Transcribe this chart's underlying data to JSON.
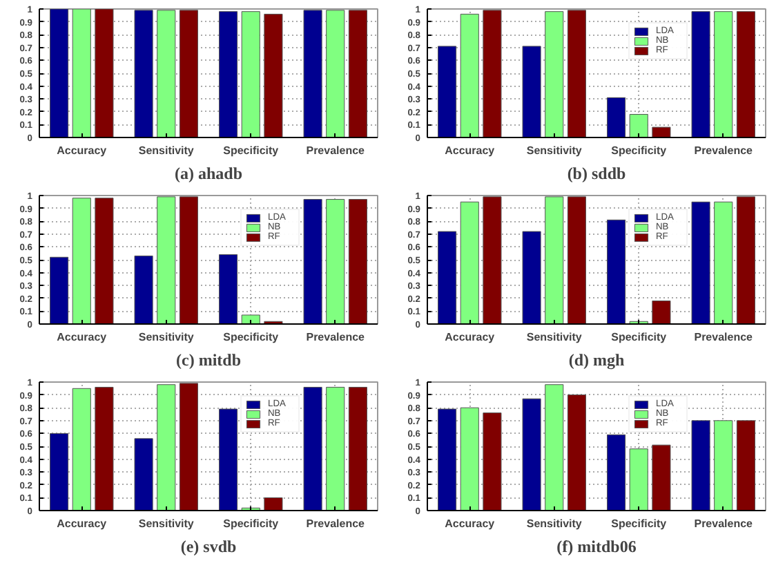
{
  "chart_data": [
    {
      "type": "bar",
      "xlabel": "(a) ahadb",
      "categories": [
        "Accuracy",
        "Sensitivity",
        "Specificity",
        "Prevalence"
      ],
      "ylim": [
        0,
        1
      ],
      "yticks": [
        0,
        0.1,
        0.2,
        0.3,
        0.4,
        0.5,
        0.6,
        0.7,
        0.8,
        0.9,
        1
      ],
      "grid": true,
      "legend": false,
      "series": [
        {
          "color": "#000090",
          "values": [
            1,
            0.99,
            0.98,
            0.99
          ]
        },
        {
          "color": "#80ff80",
          "values": [
            1,
            0.99,
            0.98,
            0.99
          ]
        },
        {
          "color": "#800000",
          "values": [
            1,
            0.99,
            0.96,
            0.99
          ]
        }
      ]
    },
    {
      "type": "bar",
      "xlabel": "(b) sddb",
      "categories": [
        "Accuracy",
        "Sensitivity",
        "Specificity",
        "Prevalence"
      ],
      "ylim": [
        0,
        1
      ],
      "yticks": [
        0,
        0.1,
        0.2,
        0.3,
        0.4,
        0.5,
        0.6,
        0.7,
        0.8,
        0.9,
        1
      ],
      "grid": true,
      "legend": "top right",
      "series": [
        {
          "name": "LDA",
          "color": "#000090",
          "values": [
            0.71,
            0.71,
            0.31,
            0.98
          ]
        },
        {
          "name": "NB",
          "color": "#80ff80",
          "values": [
            0.96,
            0.98,
            0.18,
            0.98
          ]
        },
        {
          "name": "RF",
          "color": "#800000",
          "values": [
            0.99,
            0.99,
            0.08,
            0.98
          ]
        }
      ]
    },
    {
      "type": "bar",
      "xlabel": "(c) mitdb",
      "categories": [
        "Accuracy",
        "Sensitivity",
        "Specificity",
        "Prevalence"
      ],
      "ylim": [
        0,
        1
      ],
      "yticks": [
        0,
        0.1,
        0.2,
        0.3,
        0.4,
        0.5,
        0.6,
        0.7,
        0.8,
        0.9,
        1
      ],
      "grid": true,
      "legend": "top right",
      "series": [
        {
          "name": "LDA",
          "color": "#000090",
          "values": [
            0.52,
            0.53,
            0.54,
            0.97
          ]
        },
        {
          "name": "NB",
          "color": "#80ff80",
          "values": [
            0.98,
            0.99,
            0.07,
            0.97
          ]
        },
        {
          "name": "RF",
          "color": "#800000",
          "values": [
            0.98,
            0.99,
            0.02,
            0.97
          ]
        }
      ]
    },
    {
      "type": "bar",
      "xlabel": "(d) mgh",
      "categories": [
        "Accuracy",
        "Sensitivity",
        "Specificity",
        "Prevalence"
      ],
      "ylim": [
        0,
        1
      ],
      "yticks": [
        0,
        0.1,
        0.2,
        0.3,
        0.4,
        0.5,
        0.6,
        0.7,
        0.8,
        0.9,
        1
      ],
      "grid": true,
      "legend": "top right",
      "series": [
        {
          "name": "LDA",
          "color": "#000090",
          "values": [
            0.72,
            0.72,
            0.81,
            0.95
          ]
        },
        {
          "name": "NB",
          "color": "#80ff80",
          "values": [
            0.95,
            0.99,
            0.02,
            0.95
          ]
        },
        {
          "name": "RF",
          "color": "#800000",
          "values": [
            0.99,
            0.99,
            0.18,
            0.99
          ]
        }
      ]
    },
    {
      "type": "bar",
      "xlabel": "(e) svdb",
      "categories": [
        "Accuracy",
        "Sensitivity",
        "Specificity",
        "Prevalence"
      ],
      "ylim": [
        0,
        1
      ],
      "yticks": [
        0,
        0.1,
        0.2,
        0.3,
        0.4,
        0.5,
        0.6,
        0.7,
        0.8,
        0.9,
        1
      ],
      "grid": true,
      "legend": "top right",
      "series": [
        {
          "name": "LDA",
          "color": "#000090",
          "values": [
            0.6,
            0.56,
            0.79,
            0.96
          ]
        },
        {
          "name": "NB",
          "color": "#80ff80",
          "values": [
            0.95,
            0.98,
            0.02,
            0.96
          ]
        },
        {
          "name": "RF",
          "color": "#800000",
          "values": [
            0.96,
            0.99,
            0.1,
            0.96
          ]
        }
      ]
    },
    {
      "type": "bar",
      "xlabel": "(f) mitdb06",
      "categories": [
        "Accuracy",
        "Sensitivity",
        "Specificity",
        "Prevalence"
      ],
      "ylim": [
        0,
        1
      ],
      "yticks": [
        0,
        0.1,
        0.2,
        0.3,
        0.4,
        0.5,
        0.6,
        0.7,
        0.8,
        0.9,
        1
      ],
      "grid": true,
      "legend": "top right",
      "series": [
        {
          "name": "LDA",
          "color": "#000090",
          "values": [
            0.79,
            0.87,
            0.59,
            0.7
          ]
        },
        {
          "name": "NB",
          "color": "#80ff80",
          "values": [
            0.8,
            0.98,
            0.48,
            0.7
          ]
        },
        {
          "name": "RF",
          "color": "#800000",
          "values": [
            0.76,
            0.9,
            0.51,
            0.7
          ]
        }
      ]
    }
  ]
}
